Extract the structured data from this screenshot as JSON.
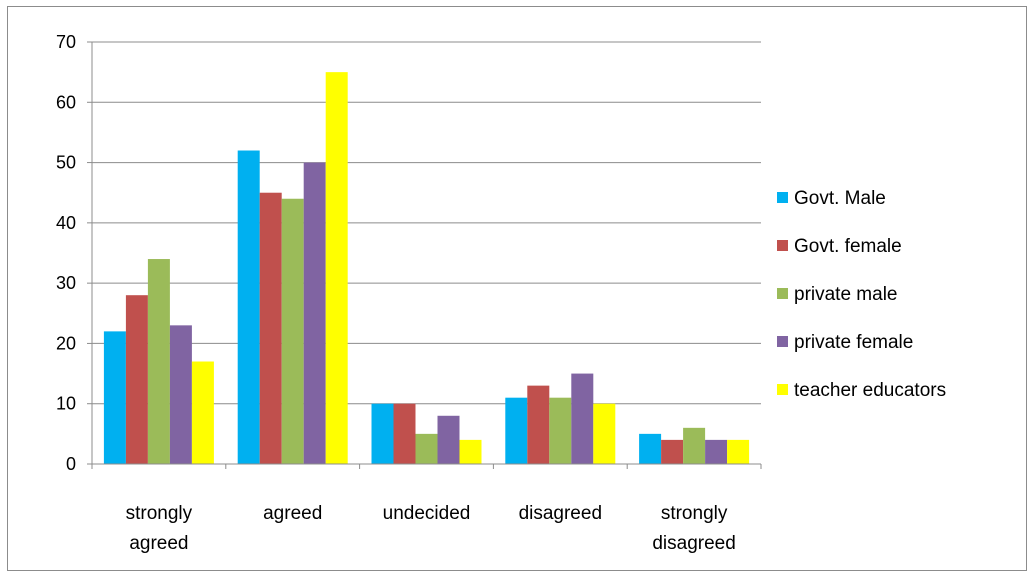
{
  "chart_data": {
    "type": "bar",
    "title": "",
    "xlabel": "",
    "ylabel": "",
    "ylim": [
      0,
      70
    ],
    "yticks": [
      0,
      10,
      20,
      30,
      40,
      50,
      60,
      70
    ],
    "grid": true,
    "legend_position": "right",
    "categories": [
      [
        "strongly",
        "agreed"
      ],
      [
        "agreed"
      ],
      [
        "undecided"
      ],
      [
        "disagreed"
      ],
      [
        "strongly",
        "disagreed"
      ]
    ],
    "series": [
      {
        "name": "Govt. Male",
        "color": "#00B0F0",
        "values": [
          22,
          52,
          10,
          11,
          5
        ]
      },
      {
        "name": "Govt. female",
        "color": "#C0504D",
        "values": [
          28,
          45,
          10,
          13,
          4
        ]
      },
      {
        "name": "private male",
        "color": "#9BBB59",
        "values": [
          34,
          44,
          5,
          11,
          6
        ]
      },
      {
        "name": "private female",
        "color": "#8064A2",
        "values": [
          23,
          50,
          8,
          15,
          4
        ]
      },
      {
        "name": "teacher educators",
        "color": "#FFFF00",
        "values": [
          17,
          65,
          4,
          10,
          4
        ]
      }
    ]
  }
}
